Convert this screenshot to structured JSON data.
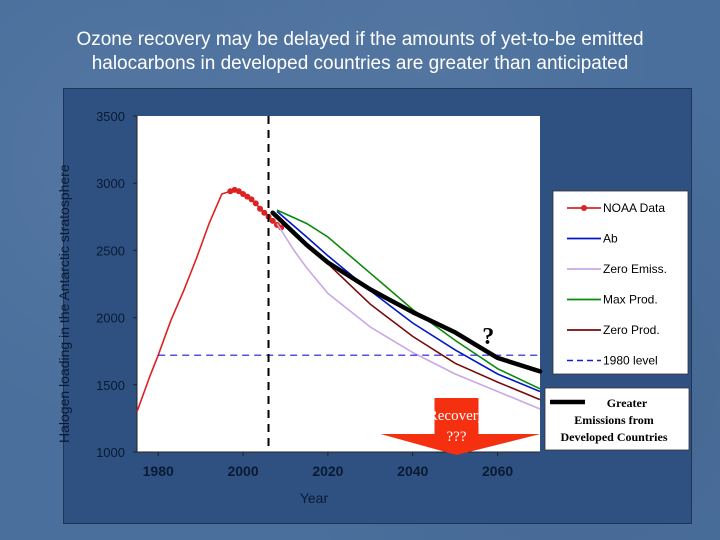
{
  "slide": {
    "title_line1": "Ozone recovery may be delayed if the amounts of yet-to-be emitted",
    "title_line2": "halocarbons in developed countries are greater than anticipated"
  },
  "chart_data": {
    "type": "line",
    "title": "",
    "xlabel": "Year",
    "ylabel": "Halogen loading in the Antarctic stratosphere",
    "xlim": [
      1975,
      2070
    ],
    "ylim": [
      1000,
      3500
    ],
    "x_ticks": [
      "1980",
      "2000",
      "2020",
      "2040",
      "2060"
    ],
    "y_ticks": [
      "1000",
      "1500",
      "2000",
      "2500",
      "3000",
      "3500"
    ],
    "series": [
      {
        "name": "NOAA Data",
        "color": "#dd2222",
        "style": "line-dots",
        "x": [
          1975,
          1978,
          1980,
          1983,
          1986,
          1989,
          1992,
          1995,
          1997,
          1998,
          1999,
          2000,
          2001,
          2002,
          2003,
          2004,
          2005,
          2006,
          2007,
          2008,
          2009
        ],
        "y": [
          1300,
          1560,
          1720,
          1980,
          2200,
          2440,
          2700,
          2920,
          2940,
          2950,
          2940,
          2920,
          2900,
          2880,
          2850,
          2810,
          2780,
          2750,
          2720,
          2690,
          2670
        ]
      },
      {
        "name": "Ab",
        "color": "#0018c8",
        "style": "line",
        "x": [
          2008,
          2015,
          2020,
          2030,
          2040,
          2050,
          2060,
          2070
        ],
        "y": [
          2790,
          2600,
          2460,
          2200,
          1960,
          1760,
          1580,
          1450
        ]
      },
      {
        "name": "Zero Emiss.",
        "color": "#c8a8e8",
        "style": "line",
        "x": [
          2008,
          2012,
          2015,
          2020,
          2030,
          2040,
          2050,
          2060,
          2070
        ],
        "y": [
          2700,
          2500,
          2370,
          2180,
          1930,
          1740,
          1580,
          1450,
          1320
        ]
      },
      {
        "name": "Max Prod.",
        "color": "#0a8a0a",
        "style": "line",
        "x": [
          2008,
          2015,
          2020,
          2030,
          2040,
          2050,
          2060,
          2070
        ],
        "y": [
          2800,
          2700,
          2600,
          2330,
          2060,
          1830,
          1620,
          1470
        ]
      },
      {
        "name": "Zero Prod.",
        "color": "#7a0a0a",
        "style": "line",
        "x": [
          2008,
          2015,
          2020,
          2030,
          2040,
          2050,
          2060,
          2070
        ],
        "y": [
          2760,
          2550,
          2400,
          2100,
          1860,
          1660,
          1520,
          1390
        ]
      },
      {
        "name": "1980 level",
        "color": "#1a1ad0",
        "style": "dashed",
        "x": [
          1980,
          2070
        ],
        "y": [
          1720,
          1720
        ]
      },
      {
        "name": "Greater Emissions from Developed Countries",
        "color": "#000000",
        "style": "thick",
        "x": [
          2007,
          2015,
          2020,
          2030,
          2040,
          2050,
          2060,
          2070
        ],
        "y": [
          2780,
          2540,
          2410,
          2210,
          2040,
          1890,
          1700,
          1600
        ]
      }
    ],
    "annotations": {
      "reference_year": 2006,
      "question_mark": "?",
      "question_mark_xy": [
        2063,
        1820
      ],
      "recovery_line1": "Recovery",
      "recovery_line2": "???",
      "recovery_arrow_range": [
        2040,
        2067
      ]
    },
    "legend": {
      "placement": "right",
      "items": [
        "NOAA Data",
        "Ab",
        "Zero Emiss.",
        "Max Prod.",
        "Zero Prod.",
        "1980 level"
      ],
      "greater_label_lines": [
        "Greater",
        "Emissions from",
        "Developed Countries"
      ]
    },
    "colors": {
      "background": "#4a6f9c",
      "frame": "#2e5181",
      "plot_area": "#ffffff",
      "recovery_arrow": "#f43010"
    }
  }
}
